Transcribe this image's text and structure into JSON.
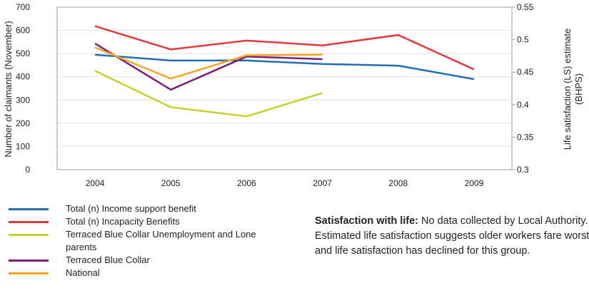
{
  "chart_data": {
    "type": "line",
    "categories": [
      "2004",
      "2005",
      "2006",
      "2007",
      "2008",
      "2009"
    ],
    "ylabel": "Number of claimants (November)",
    "y2label_line1": "Life satisfaction (LS) estimate",
    "y2label_line2": "(BHPS)",
    "ylim": [
      0,
      700
    ],
    "y2lim": [
      0.3,
      0.55
    ],
    "yticks": [
      "0",
      "100",
      "200",
      "300",
      "400",
      "500",
      "600",
      "700"
    ],
    "y2ticks": [
      "0.3",
      "0.35",
      "0.4",
      "0.45",
      "0.5",
      "0.55"
    ],
    "grid": true,
    "legend_position": "bottom-left",
    "series": [
      {
        "name": "Total (n) Income support benefit",
        "axis": "left",
        "color": "#1f6fb2",
        "values": [
          495,
          470,
          470,
          455,
          448,
          390
        ]
      },
      {
        "name": "Total (n) Incapacity Benefits",
        "axis": "left",
        "color": "#e03a3e",
        "values": [
          618,
          518,
          556,
          535,
          580,
          432
        ]
      },
      {
        "name": "Terraced Blue Collar Unemployment and Lone parents",
        "axis": "right",
        "color": "#c7d22b",
        "values": [
          0.452,
          0.396,
          0.382,
          0.418,
          null,
          null
        ]
      },
      {
        "name": "Terraced Blue Collar",
        "axis": "right",
        "color": "#7b1f78",
        "values": [
          0.494,
          0.423,
          0.474,
          0.47,
          null,
          null
        ]
      },
      {
        "name": "National",
        "axis": "right",
        "color": "#f6a623",
        "values": [
          0.488,
          0.44,
          0.476,
          0.477,
          null,
          null
        ]
      }
    ]
  },
  "legend_labels": {
    "s0": "Total (n) Income support benefit",
    "s1": "Total (n) Incapacity Benefits",
    "s2": "Terraced Blue Collar Unemployment and Lone parents",
    "s3": "Terraced Blue Collar",
    "s4": "National"
  },
  "note": {
    "heading": "Satisfaction with life:",
    "body": " No data collected by Local Authority. Estimated life satisfaction suggests older workers fare worst and life satisfaction has declined for this group."
  }
}
